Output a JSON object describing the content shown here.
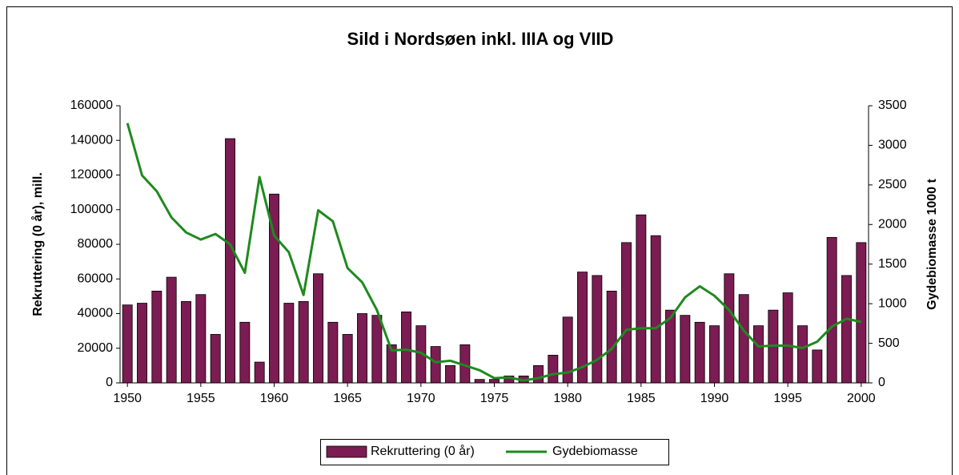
{
  "chart_data": {
    "type": "bar",
    "title": "Sild i Nordsøen inkl. IIIA og VIID",
    "y_label": "Rekruttering (0 år), mill.",
    "y2_label": "Gydebiomasse 1000 t",
    "x": [
      1950,
      1951,
      1952,
      1953,
      1954,
      1955,
      1956,
      1957,
      1958,
      1959,
      1960,
      1961,
      1962,
      1963,
      1964,
      1965,
      1966,
      1967,
      1968,
      1969,
      1970,
      1971,
      1972,
      1973,
      1974,
      1975,
      1976,
      1977,
      1978,
      1979,
      1980,
      1981,
      1982,
      1983,
      1984,
      1985,
      1986,
      1987,
      1988,
      1989,
      1990,
      1991,
      1992,
      1993,
      1994,
      1995,
      1996,
      1997,
      1998,
      1999,
      2000
    ],
    "xlim": [
      1949.5,
      2000.5
    ],
    "xticks": [
      1950,
      1955,
      1960,
      1965,
      1970,
      1975,
      1980,
      1985,
      1990,
      1995,
      2000
    ],
    "ylim": [
      0,
      160000
    ],
    "yticks": [
      0,
      20000,
      40000,
      60000,
      80000,
      100000,
      120000,
      140000,
      160000
    ],
    "y2lim": [
      0,
      3500
    ],
    "y2ticks": [
      0,
      500,
      1000,
      1500,
      2000,
      2500,
      3000,
      3500
    ],
    "legend": "bottom",
    "series": [
      {
        "name": "Rekruttering (0 år)",
        "type": "bar",
        "color": "#7b1c52",
        "values": [
          45000,
          46000,
          53000,
          61000,
          47000,
          51000,
          28000,
          141000,
          35000,
          12000,
          109000,
          46000,
          47000,
          63000,
          35000,
          28000,
          40000,
          39000,
          22000,
          41000,
          33000,
          21000,
          10000,
          22000,
          2000,
          2000,
          4000,
          4000,
          10000,
          16000,
          38000,
          64000,
          62000,
          53000,
          81000,
          97000,
          85000,
          42000,
          39000,
          35000,
          33000,
          63000,
          51000,
          33000,
          42000,
          52000,
          33000,
          19000,
          84000,
          62000,
          81000
        ]
      },
      {
        "name": "Gydebiomasse",
        "type": "line",
        "axis": "y2",
        "color": "#1e8a1e",
        "values": [
          3280,
          2620,
          2420,
          2090,
          1900,
          1810,
          1880,
          1750,
          1390,
          2600,
          1860,
          1650,
          1110,
          2180,
          2040,
          1450,
          1270,
          920,
          410,
          420,
          380,
          260,
          280,
          220,
          160,
          60,
          70,
          30,
          60,
          110,
          130,
          200,
          290,
          430,
          670,
          690,
          690,
          820,
          1080,
          1220,
          1100,
          920,
          660,
          460,
          470,
          470,
          440,
          520,
          710,
          810,
          770
        ]
      }
    ]
  }
}
